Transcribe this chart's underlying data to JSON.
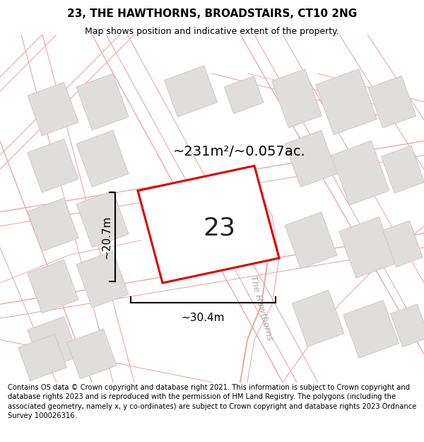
{
  "title": "23, THE HAWTHORNS, BROADSTAIRS, CT10 2NG",
  "subtitle": "Map shows position and indicative extent of the property.",
  "area_label": "~231m²/~0.057ac.",
  "plot_number": "23",
  "dim_width": "~30.4m",
  "dim_height": "~20.7m",
  "street_label": "The Hawthorns",
  "footer": "Contains OS data © Crown copyright and database right 2021. This information is subject to Crown copyright and database rights 2023 and is reproduced with the permission of HM Land Registry. The polygons (including the associated geometry, namely x, y co-ordinates) are subject to Crown copyright and database rights 2023 Ordnance Survey 100026316.",
  "map_bg": "#f7f5f3",
  "plot_face": "#ffffff",
  "plot_edge": "#dd0000",
  "building_face": "#e0dedd",
  "building_edge": "#c8c4c0",
  "road_color": "#e8aaaa",
  "road_color2": "#c8a0a0",
  "title_fontsize": 11,
  "subtitle_fontsize": 9,
  "footer_fontsize": 7.2,
  "annot_fontsize": 11,
  "area_fontsize": 14,
  "number_fontsize": 26,
  "street_fontsize": 9
}
